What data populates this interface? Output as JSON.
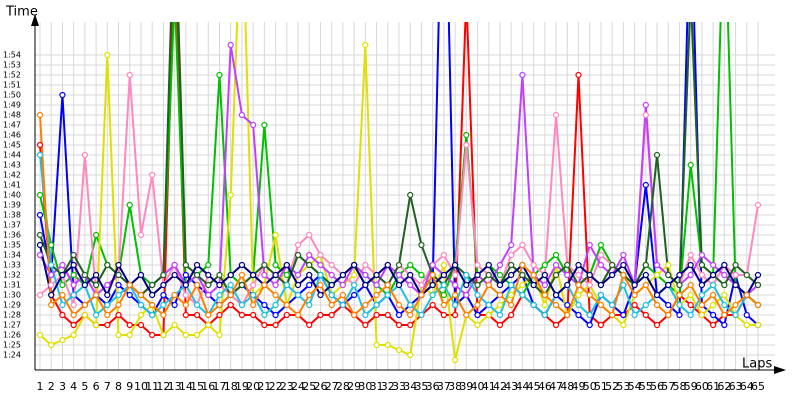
{
  "chart_data": {
    "type": "line",
    "y_label": "Time",
    "x_label": "Laps",
    "x": [
      1,
      2,
      3,
      4,
      5,
      6,
      7,
      8,
      9,
      10,
      11,
      12,
      13,
      14,
      15,
      16,
      17,
      18,
      19,
      20,
      21,
      22,
      23,
      24,
      25,
      26,
      27,
      28,
      29,
      30,
      31,
      32,
      33,
      34,
      35,
      36,
      37,
      38,
      39,
      40,
      41,
      42,
      43,
      44,
      45,
      46,
      47,
      48,
      49,
      50,
      51,
      52,
      53,
      54,
      55,
      56,
      57,
      58,
      59,
      60,
      61,
      62,
      63,
      64,
      65
    ],
    "xlim": [
      1,
      65
    ],
    "xticks": [
      1,
      2,
      3,
      4,
      5,
      6,
      7,
      8,
      9,
      10,
      11,
      12,
      13,
      14,
      15,
      16,
      17,
      18,
      19,
      20,
      21,
      22,
      23,
      24,
      25,
      26,
      27,
      28,
      29,
      30,
      31,
      32,
      33,
      34,
      35,
      36,
      37,
      38,
      39,
      40,
      41,
      42,
      43,
      44,
      45,
      46,
      47,
      48,
      49,
      50,
      51,
      52,
      53,
      54,
      55,
      56,
      57,
      58,
      59,
      60,
      61,
      62,
      63,
      64,
      65
    ],
    "ylim": [
      82.5,
      117.5
    ],
    "yticks": [
      {
        "value": 84,
        "label": "1:24"
      },
      {
        "value": 85,
        "label": "1:25"
      },
      {
        "value": 86,
        "label": "1:26"
      },
      {
        "value": 87,
        "label": "1:27"
      },
      {
        "value": 88,
        "label": "1:28"
      },
      {
        "value": 89,
        "label": "1:29"
      },
      {
        "value": 90,
        "label": "1:30"
      },
      {
        "value": 91,
        "label": "1:31"
      },
      {
        "value": 92,
        "label": "1:32"
      },
      {
        "value": 93,
        "label": "1:33"
      },
      {
        "value": 94,
        "label": "1:34"
      },
      {
        "value": 95,
        "label": "1:35"
      },
      {
        "value": 96,
        "label": "1:36"
      },
      {
        "value": 97,
        "label": "1:37"
      },
      {
        "value": 98,
        "label": "1:38"
      },
      {
        "value": 99,
        "label": "1:39"
      },
      {
        "value": 100,
        "label": "1:40"
      },
      {
        "value": 101,
        "label": "1:41"
      },
      {
        "value": 102,
        "label": "1:42"
      },
      {
        "value": 103,
        "label": "1:43"
      },
      {
        "value": 104,
        "label": "1:44"
      },
      {
        "value": 105,
        "label": "1:45"
      },
      {
        "value": 106,
        "label": "1:46"
      },
      {
        "value": 107,
        "label": "1:47"
      },
      {
        "value": 108,
        "label": "1:48"
      },
      {
        "value": 109,
        "label": "1:49"
      },
      {
        "value": 110,
        "label": "1:50"
      },
      {
        "value": 111,
        "label": "1:51"
      },
      {
        "value": 112,
        "label": "1:52"
      },
      {
        "value": 113,
        "label": "1:53"
      },
      {
        "value": 114,
        "label": "1:54"
      }
    ],
    "grid": true,
    "series": [
      {
        "color": "#ff0000",
        "values": [
          105,
          90,
          88,
          87,
          88,
          87,
          87,
          88,
          87,
          87,
          86,
          86,
          125,
          88,
          88,
          87,
          88,
          89,
          88,
          88,
          87,
          87,
          88,
          88,
          87,
          88,
          88,
          89,
          88,
          87,
          88,
          88,
          87,
          87,
          88,
          89,
          88,
          88,
          120,
          88,
          88,
          87,
          88,
          90,
          89,
          88,
          87,
          88,
          112,
          88,
          87,
          88,
          88,
          89,
          88,
          87,
          88,
          90,
          89,
          88,
          87,
          88,
          88,
          90,
          89
        ]
      },
      {
        "color": "#0000ff",
        "values": [
          98,
          92,
          110,
          90,
          89,
          90,
          89,
          91,
          90,
          89,
          88,
          90,
          89,
          92,
          91,
          90,
          89,
          90,
          91,
          90,
          89,
          88,
          89,
          90,
          91,
          92,
          90,
          89,
          90,
          91,
          89,
          90,
          88,
          89,
          90,
          91,
          140,
          89,
          90,
          88,
          89,
          90,
          91,
          92,
          89,
          88,
          90,
          89,
          88,
          87,
          90,
          89,
          88,
          91,
          101,
          90,
          89,
          88,
          130,
          89,
          88,
          87,
          92,
          88,
          87
        ]
      },
      {
        "color": "#00c000",
        "values": [
          100,
          95,
          91,
          92,
          91,
          96,
          93,
          92,
          99,
          92,
          91,
          92,
          120,
          91,
          92,
          93,
          112,
          92,
          91,
          92,
          107,
          93,
          92,
          94,
          93,
          92,
          91,
          92,
          93,
          92,
          91,
          90,
          92,
          93,
          92,
          91,
          90,
          93,
          106,
          92,
          93,
          92,
          91,
          90,
          92,
          93,
          94,
          92,
          91,
          92,
          95,
          93,
          92,
          91,
          93,
          92,
          91,
          90,
          103,
          93,
          92,
          130,
          91,
          90,
          89
        ]
      },
      {
        "color": "#e0e000",
        "values": [
          86,
          85,
          85.5,
          86,
          88,
          87,
          114,
          86,
          86,
          88,
          89,
          86,
          87,
          86,
          86,
          87,
          86,
          100,
          130,
          90,
          91,
          96,
          89,
          92,
          93,
          94,
          90,
          91,
          92,
          115,
          85,
          85,
          84.5,
          84,
          91,
          90,
          93,
          83.5,
          88,
          87,
          88,
          89,
          90,
          91,
          92,
          89,
          93,
          88,
          90,
          91,
          89,
          88,
          87,
          90,
          91,
          92,
          93,
          89,
          90,
          88,
          89,
          90,
          88,
          87,
          87
        ]
      },
      {
        "color": "#ff88c0",
        "values": [
          90,
          91,
          92,
          89,
          104,
          90,
          91,
          92,
          112,
          96,
          102,
          91,
          93,
          90,
          89,
          92,
          91,
          90,
          89,
          91,
          93,
          92,
          91,
          95,
          96,
          94,
          93,
          92,
          91,
          93,
          92,
          91,
          93,
          92,
          91,
          93,
          94,
          92,
          105,
          93,
          92,
          91,
          94,
          95,
          93,
          92,
          108,
          93,
          92,
          91,
          94,
          93,
          92,
          91,
          108,
          93,
          92,
          91,
          94,
          92,
          91,
          93,
          92,
          92,
          99
        ]
      },
      {
        "color": "#c040ff",
        "values": [
          94,
          92,
          93,
          91,
          92,
          90,
          91,
          92,
          91,
          90,
          91,
          92,
          93,
          91,
          92,
          90,
          91,
          115,
          108,
          107,
          92,
          91,
          93,
          92,
          94,
          93,
          92,
          91,
          93,
          92,
          91,
          93,
          92,
          91,
          90,
          93,
          92,
          91,
          90,
          92,
          91,
          93,
          95,
          112,
          92,
          91,
          93,
          92,
          91,
          95,
          93,
          92,
          94,
          91,
          109,
          93,
          92,
          91,
          92,
          94,
          93,
          92,
          91,
          90,
          91
        ]
      },
      {
        "color": "#206020",
        "values": [
          96,
          93,
          92,
          94,
          92,
          91,
          93,
          92,
          91,
          90,
          91,
          92,
          130,
          93,
          92,
          91,
          92,
          90,
          91,
          92,
          93,
          92,
          91,
          94,
          93,
          92,
          91,
          92,
          93,
          91,
          92,
          91,
          93,
          100,
          95,
          92,
          91,
          93,
          92,
          91,
          92,
          91,
          93,
          92,
          91,
          90,
          92,
          93,
          91,
          92,
          91,
          93,
          92,
          91,
          93,
          104,
          92,
          91,
          120,
          93,
          92,
          91,
          93,
          92,
          91
        ]
      },
      {
        "color": "#20c0e0",
        "values": [
          104,
          93,
          89,
          90,
          91,
          88,
          89,
          90,
          91,
          89,
          88,
          89,
          90,
          91,
          89,
          88,
          90,
          91,
          89,
          90,
          88,
          89,
          91,
          90,
          89,
          92,
          90,
          89,
          91,
          88,
          89,
          90,
          91,
          89,
          88,
          90,
          91,
          89,
          92,
          90,
          89,
          88,
          91,
          90,
          89,
          88,
          90,
          91,
          89,
          88,
          90,
          89,
          91,
          88,
          89,
          90,
          91,
          89,
          88,
          90,
          91,
          89,
          88,
          90,
          89
        ]
      },
      {
        "color": "#000080",
        "values": [
          95,
          90,
          92,
          93,
          91,
          92,
          90,
          93,
          91,
          92,
          90,
          91,
          92,
          91,
          93,
          92,
          91,
          92,
          93,
          92,
          91,
          92,
          93,
          91,
          92,
          90,
          91,
          92,
          93,
          91,
          92,
          93,
          91,
          92,
          90,
          91,
          92,
          93,
          91,
          92,
          93,
          91,
          92,
          93,
          91,
          92,
          90,
          91,
          93,
          92,
          91,
          92,
          93,
          91,
          92,
          90,
          91,
          92,
          93,
          91,
          92,
          93,
          91,
          90,
          92
        ]
      },
      {
        "color": "#ff8000",
        "values": [
          108,
          89,
          90,
          88,
          89,
          90,
          88,
          89,
          91,
          90,
          89,
          88,
          90,
          89,
          91,
          88,
          89,
          90,
          92,
          89,
          91,
          90,
          89,
          88,
          90,
          91,
          89,
          90,
          88,
          89,
          90,
          91,
          89,
          88,
          90,
          92,
          89,
          90,
          88,
          89,
          91,
          90,
          89,
          93,
          92,
          90,
          89,
          88,
          91,
          90,
          89,
          88,
          92,
          90,
          91,
          89,
          88,
          90,
          91,
          89,
          90,
          88,
          89,
          90,
          89
        ]
      }
    ]
  }
}
